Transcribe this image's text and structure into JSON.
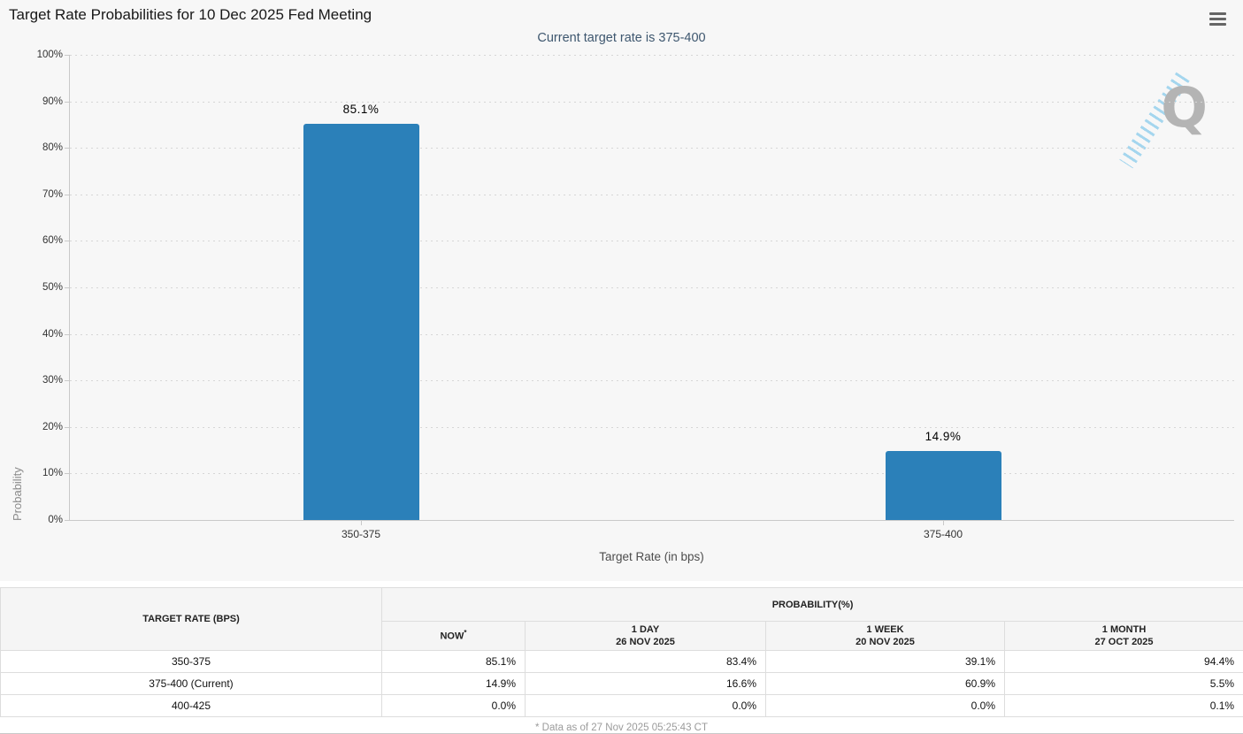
{
  "header": {
    "menu_icon": "hamburger-menu"
  },
  "chart_data": {
    "type": "bar",
    "title": "Target Rate Probabilities for 10 Dec 2025 Fed Meeting",
    "subtitle": "Current target rate is 375-400",
    "categories": [
      "350-375",
      "375-400"
    ],
    "values": [
      85.1,
      14.9
    ],
    "value_labels": [
      "85.1%",
      "14.9%"
    ],
    "xlabel": "Target Rate (in bps)",
    "ylabel": "Probability",
    "ylim": [
      0,
      100
    ],
    "ytick_step": 10,
    "ytick_labels": [
      "0%",
      "10%",
      "20%",
      "30%",
      "40%",
      "50%",
      "60%",
      "70%",
      "80%",
      "90%",
      "100%"
    ],
    "grid": "dotted-horizontal",
    "legend": "none",
    "bar_color": "#2b80b9",
    "watermark_letter": "Q"
  },
  "table": {
    "target_rate_header": "TARGET RATE (BPS)",
    "probability_header": "PROBABILITY(%)",
    "subcolumns": [
      {
        "label": "NOW",
        "sup": "*",
        "date": ""
      },
      {
        "label": "1 DAY",
        "date": "26 NOV 2025"
      },
      {
        "label": "1 WEEK",
        "date": "20 NOV 2025"
      },
      {
        "label": "1 MONTH",
        "date": "27 OCT 2025"
      }
    ],
    "rows": [
      {
        "target": "350-375",
        "values": [
          "85.1%",
          "83.4%",
          "39.1%",
          "94.4%"
        ]
      },
      {
        "target": "375-400 (Current)",
        "values": [
          "14.9%",
          "16.6%",
          "60.9%",
          "5.5%"
        ]
      },
      {
        "target": "400-425",
        "values": [
          "0.0%",
          "0.0%",
          "0.0%",
          "0.1%"
        ]
      }
    ],
    "now_column_bg": "#f9f9d8",
    "footnote": "* Data as of 27 Nov 2025 05:25:43 CT"
  }
}
